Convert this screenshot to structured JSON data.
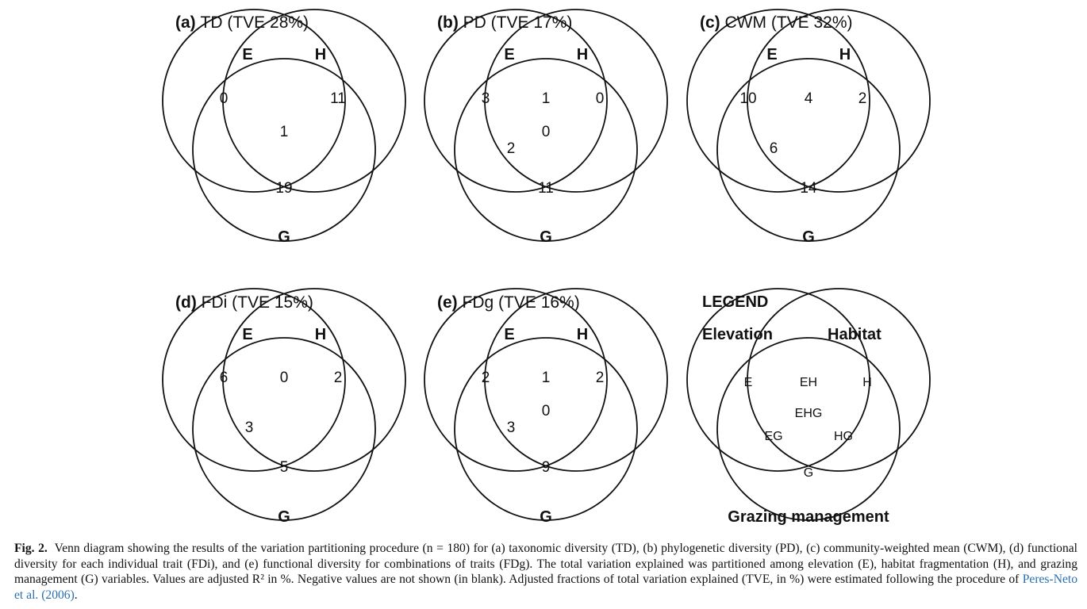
{
  "panels": [
    {
      "label": "(a)",
      "title": "TD (TVE 28%)",
      "set_e": "E",
      "set_h": "H",
      "set_g": "G",
      "values": {
        "E": "0",
        "H": "11",
        "G": "19",
        "EH": "",
        "EG": "",
        "HG": "",
        "EHG": "1"
      }
    },
    {
      "label": "(b)",
      "title": "PD (TVE 17%)",
      "set_e": "E",
      "set_h": "H",
      "set_g": "G",
      "values": {
        "E": "3",
        "H": "0",
        "G": "11",
        "EH": "1",
        "EG": "2",
        "HG": "",
        "EHG": "0"
      }
    },
    {
      "label": "(c)",
      "title": "CWM (TVE 32%)",
      "set_e": "E",
      "set_h": "H",
      "set_g": "G",
      "values": {
        "E": "10",
        "H": "2",
        "G": "14",
        "EH": "4",
        "EG": "6",
        "HG": "",
        "EHG": ""
      }
    },
    {
      "label": "(d)",
      "title": "FDi (TVE 15%)",
      "set_e": "E",
      "set_h": "H",
      "set_g": "G",
      "values": {
        "E": "6",
        "H": "2",
        "G": "5",
        "EH": "0",
        "EG": "3",
        "HG": "",
        "EHG": ""
      }
    },
    {
      "label": "(e)",
      "title": "FDg (TVE 16%)",
      "set_e": "E",
      "set_h": "H",
      "set_g": "G",
      "values": {
        "E": "2",
        "H": "2",
        "G": "9",
        "EH": "1",
        "EG": "3",
        "HG": "",
        "EHG": "0"
      }
    }
  ],
  "legend": {
    "heading": "LEGEND",
    "elevation": "Elevation",
    "habitat": "Habitat",
    "grazing": "Grazing management",
    "regions": {
      "E": "E",
      "H": "H",
      "G": "G",
      "EH": "EH",
      "EG": "EG",
      "HG": "HG",
      "EHG": "EHG"
    }
  },
  "caption": {
    "fig_label": "Fig. 2.",
    "text": "Venn diagram showing the results of the variation partitioning procedure (n = 180) for (a) taxonomic diversity (TD), (b) phylogenetic diversity (PD), (c) community-weighted mean (CWM), (d) functional diversity for each individual trait (FDi), and (e) functional diversity for combinations of traits (FDg). The total variation explained was partitioned among elevation (E), habitat fragmentation (H), and grazing management (G) variables. Values are adjusted R² in %. Negative values are not shown (in blank). Adjusted fractions of total variation explained (TVE, in %) were estimated following the procedure of",
    "reference": "Peres-Neto et al. (2006)",
    "end": "."
  }
}
